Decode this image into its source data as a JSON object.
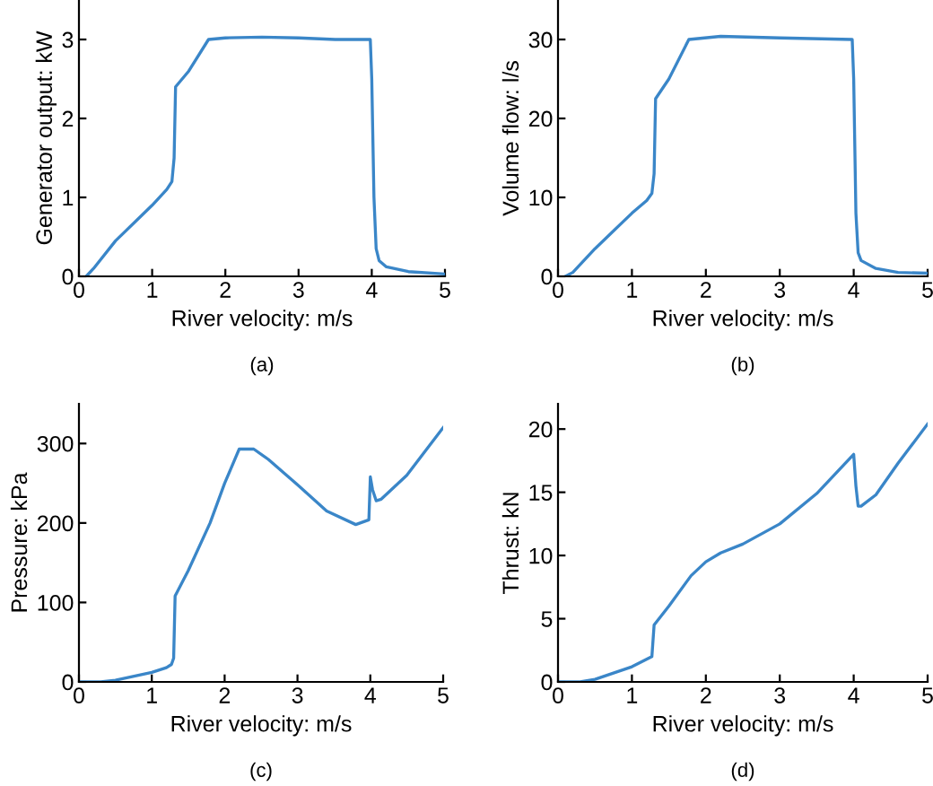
{
  "chart_data": [
    {
      "type": "line",
      "xlabel": "River velocity: m/s",
      "ylabel": "Generator output: kW",
      "annotations": [
        "(a)"
      ],
      "xlim": [
        0,
        5
      ],
      "ylim": [
        0,
        3.5
      ],
      "xticks": [
        0,
        1,
        2,
        3,
        4,
        5
      ],
      "yticks": [
        0,
        1,
        2,
        3
      ],
      "grid": false,
      "legend": false,
      "series": [
        {
          "color": "#3a86c8",
          "x": [
            0.1,
            0.2,
            0.5,
            1.0,
            1.2,
            1.27,
            1.3,
            1.32,
            1.5,
            1.77,
            2.0,
            2.5,
            3.0,
            3.5,
            3.98,
            4.0,
            4.03,
            4.06,
            4.1,
            4.2,
            4.5,
            5.0
          ],
          "values": [
            0,
            0.1,
            0.45,
            0.9,
            1.1,
            1.2,
            1.5,
            2.4,
            2.6,
            3.0,
            3.02,
            3.03,
            3.02,
            3.0,
            3.0,
            2.5,
            1.0,
            0.35,
            0.2,
            0.12,
            0.06,
            0.03
          ]
        }
      ]
    },
    {
      "type": "line",
      "xlabel": "River velocity: m/s",
      "ylabel": "Volume flow: l/s",
      "annotations": [
        "(b)"
      ],
      "xlim": [
        0,
        5
      ],
      "ylim": [
        0,
        35
      ],
      "xticks": [
        0,
        1,
        2,
        3,
        4,
        5
      ],
      "yticks": [
        0,
        10,
        20,
        30
      ],
      "grid": false,
      "legend": false,
      "series": [
        {
          "color": "#3a86c8",
          "x": [
            0.1,
            0.2,
            0.5,
            1.0,
            1.2,
            1.27,
            1.3,
            1.32,
            1.5,
            1.77,
            2.2,
            3.0,
            3.98,
            4.0,
            4.03,
            4.06,
            4.1,
            4.3,
            4.6,
            5.0
          ],
          "values": [
            0,
            0.5,
            3.5,
            8,
            9.6,
            10.5,
            13,
            22.5,
            25,
            30,
            30.4,
            30.2,
            30,
            25,
            8,
            3,
            2,
            1,
            0.5,
            0.4
          ]
        }
      ]
    },
    {
      "type": "line",
      "xlabel": "River velocity: m/s",
      "ylabel": "Pressure: kPa",
      "annotations": [
        "(c)"
      ],
      "xlim": [
        0,
        5
      ],
      "ylim": [
        0,
        350
      ],
      "xticks": [
        0,
        1,
        2,
        3,
        4,
        5
      ],
      "yticks": [
        0,
        100,
        200,
        300
      ],
      "grid": false,
      "legend": false,
      "series": [
        {
          "color": "#3a86c8",
          "x": [
            0,
            0.3,
            0.5,
            1.0,
            1.2,
            1.27,
            1.3,
            1.32,
            1.5,
            1.8,
            2.0,
            2.2,
            2.4,
            2.6,
            3.0,
            3.4,
            3.8,
            3.98,
            4.0,
            4.03,
            4.08,
            4.15,
            4.5,
            5.0
          ],
          "values": [
            0,
            0,
            2,
            12,
            18,
            22,
            30,
            108,
            140,
            200,
            250,
            293,
            293,
            280,
            248,
            215,
            198,
            204,
            258,
            242,
            228,
            230,
            260,
            320
          ]
        }
      ]
    },
    {
      "type": "line",
      "xlabel": "River velocity: m/s",
      "ylabel": "Thrust: kN",
      "annotations": [
        "(d)"
      ],
      "xlim": [
        0,
        5
      ],
      "ylim": [
        0,
        22
      ],
      "xticks": [
        0,
        1,
        2,
        3,
        4,
        5
      ],
      "yticks": [
        0,
        5,
        10,
        15,
        20
      ],
      "grid": false,
      "legend": false,
      "series": [
        {
          "color": "#3a86c8",
          "x": [
            0,
            0.3,
            0.5,
            1.0,
            1.27,
            1.3,
            1.5,
            1.8,
            2.0,
            2.2,
            2.5,
            3.0,
            3.5,
            4.0,
            4.03,
            4.06,
            4.1,
            4.3,
            4.6,
            5.0
          ],
          "values": [
            0,
            0,
            0.2,
            1.2,
            2,
            4.5,
            6,
            8.4,
            9.5,
            10.2,
            10.9,
            12.5,
            14.9,
            18.0,
            15.5,
            13.9,
            13.9,
            14.8,
            17.3,
            20.4
          ]
        }
      ]
    }
  ]
}
